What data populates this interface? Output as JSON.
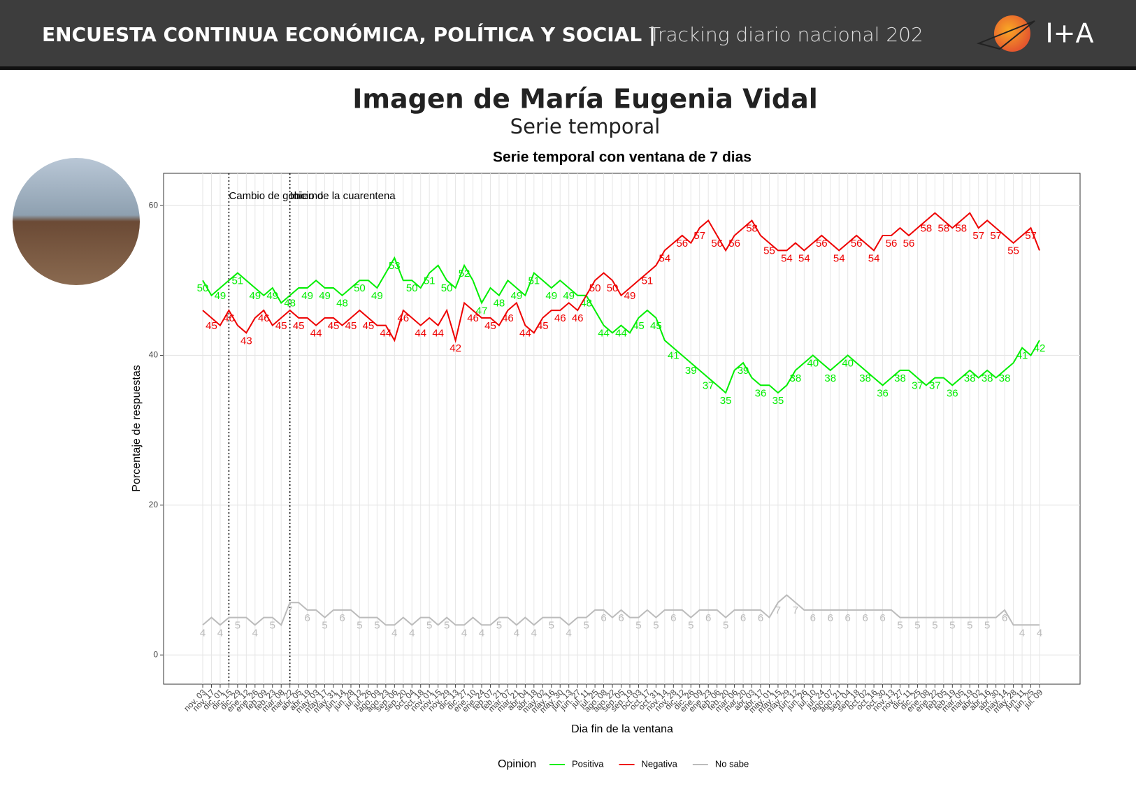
{
  "header": {
    "title": "ENCUESTA CONTINUA ECONÓMICA, POLÍTICA Y SOCIAL |",
    "subtitle": "Tracking diario nacional 202",
    "logo": "I+A"
  },
  "heading": {
    "title": "Imagen de María Eugenia Vidal",
    "subtitle": "Serie temporal"
  },
  "chart_data": {
    "type": "line",
    "title": "Serie temporal con ventana de 7 dias",
    "x_label": "Dia fin de la ventana",
    "y_label": "Porcentaje de respuestas",
    "legend_title": "Opinion",
    "legend": "bottom",
    "grid": true,
    "data_labels": true,
    "categories": [
      "nov. 03",
      "nov. 17",
      "dic. 01",
      "dic. 15",
      "dic. 29",
      "ene. 12",
      "ene. 26",
      "feb. 09",
      "feb. 23",
      "mar. 08",
      "mar. 22",
      "abr. 05",
      "abr. 19",
      "may. 03",
      "may. 17",
      "may. 31",
      "jun. 14",
      "jun. 28",
      "jul. 12",
      "jul. 26",
      "ago. 09",
      "ago. 23",
      "sep. 06",
      "sep. 20",
      "oct. 04",
      "oct. 18",
      "nov. 01",
      "nov. 15",
      "nov. 29",
      "dic. 13",
      "dic. 27",
      "ene. 10",
      "ene. 24",
      "feb. 07",
      "feb. 21",
      "mar. 07",
      "mar. 21",
      "abr. 04",
      "abr. 18",
      "may. 02",
      "may. 16",
      "may. 30",
      "jun. 13",
      "jun. 27",
      "jul. 11",
      "jul. 25",
      "ago. 08",
      "ago. 22",
      "sep. 05",
      "sep. 19",
      "oct. 03",
      "oct. 17",
      "oct. 31",
      "nov. 14",
      "nov. 28",
      "dic. 12",
      "dic. 26",
      "ene. 09",
      "ene. 23",
      "feb. 06",
      "feb. 20",
      "mar. 06",
      "mar. 20",
      "abr. 03",
      "abr. 17",
      "may. 01",
      "may. 15",
      "may. 29",
      "jun. 12",
      "jun. 26",
      "jul. 10",
      "jul. 24",
      "ago. 07",
      "ago. 21",
      "sep. 04",
      "sep. 18",
      "oct. 02",
      "oct. 16",
      "oct. 30",
      "nov. 13",
      "nov. 27",
      "dic. 11",
      "dic. 25",
      "ene. 08",
      "ene. 22",
      "feb. 05",
      "feb. 19",
      "mar. 05",
      "mar. 19",
      "abr. 02",
      "abr. 16",
      "abr. 30",
      "may. 14",
      "may. 28",
      "jun. 11",
      "jun. 25",
      "jul. 09"
    ],
    "series": [
      {
        "name": "Positiva",
        "color": "#00ee00",
        "values": [
          50,
          48,
          49,
          50,
          51,
          50,
          49,
          48,
          49,
          47,
          48,
          49,
          49,
          50,
          49,
          49,
          48,
          49,
          50,
          50,
          49,
          51,
          53,
          50,
          50,
          49,
          51,
          52,
          50,
          49,
          52,
          50,
          47,
          49,
          48,
          50,
          49,
          48,
          51,
          50,
          49,
          50,
          49,
          48,
          48,
          46,
          44,
          43,
          44,
          43,
          45,
          46,
          45,
          42,
          41,
          40,
          39,
          38,
          37,
          36,
          35,
          38,
          39,
          37,
          36,
          36,
          35,
          36,
          38,
          39,
          40,
          39,
          38,
          39,
          40,
          39,
          38,
          37,
          36,
          37,
          38,
          38,
          37,
          36,
          37,
          37,
          36,
          37,
          38,
          37,
          38,
          37,
          38,
          39,
          41,
          40,
          42
        ]
      },
      {
        "name": "Negativa",
        "color": "#ee0000",
        "values": [
          46,
          45,
          44,
          46,
          44,
          43,
          45,
          46,
          44,
          45,
          46,
          45,
          45,
          44,
          45,
          45,
          44,
          45,
          46,
          45,
          44,
          44,
          42,
          46,
          45,
          44,
          45,
          44,
          46,
          42,
          47,
          46,
          45,
          45,
          44,
          46,
          47,
          44,
          43,
          45,
          46,
          46,
          47,
          46,
          48,
          50,
          51,
          50,
          48,
          49,
          50,
          51,
          52,
          54,
          55,
          56,
          55,
          57,
          58,
          56,
          54,
          56,
          57,
          58,
          56,
          55,
          54,
          54,
          55,
          54,
          55,
          56,
          55,
          54,
          55,
          56,
          55,
          54,
          56,
          56,
          57,
          56,
          57,
          58,
          59,
          58,
          57,
          58,
          59,
          57,
          58,
          57,
          56,
          55,
          56,
          57,
          54
        ]
      },
      {
        "name": "No sabe",
        "color": "#bbbbbb",
        "values": [
          4,
          5,
          4,
          5,
          5,
          5,
          4,
          5,
          5,
          4,
          7,
          7,
          6,
          6,
          5,
          6,
          6,
          6,
          5,
          5,
          5,
          4,
          4,
          5,
          4,
          5,
          5,
          4,
          5,
          4,
          4,
          5,
          4,
          4,
          5,
          5,
          4,
          5,
          4,
          5,
          5,
          5,
          4,
          5,
          5,
          6,
          6,
          5,
          6,
          5,
          5,
          6,
          5,
          6,
          6,
          6,
          5,
          6,
          6,
          6,
          5,
          6,
          6,
          6,
          6,
          5,
          7,
          8,
          7,
          6,
          6,
          6,
          6,
          6,
          6,
          6,
          6,
          6,
          6,
          6,
          5,
          5,
          5,
          5,
          5,
          5,
          5,
          5,
          5,
          5,
          5,
          5,
          6,
          4,
          4,
          4,
          4
        ]
      }
    ],
    "annotations": [
      {
        "text": "Cambio de gobierno",
        "x": "dic. 15"
      },
      {
        "text": "Inicio de la cuarentena",
        "x": "mar. 22"
      }
    ],
    "ylim": [
      -3.9,
      64.3
    ],
    "yticks": [
      0,
      20,
      40,
      60
    ]
  }
}
